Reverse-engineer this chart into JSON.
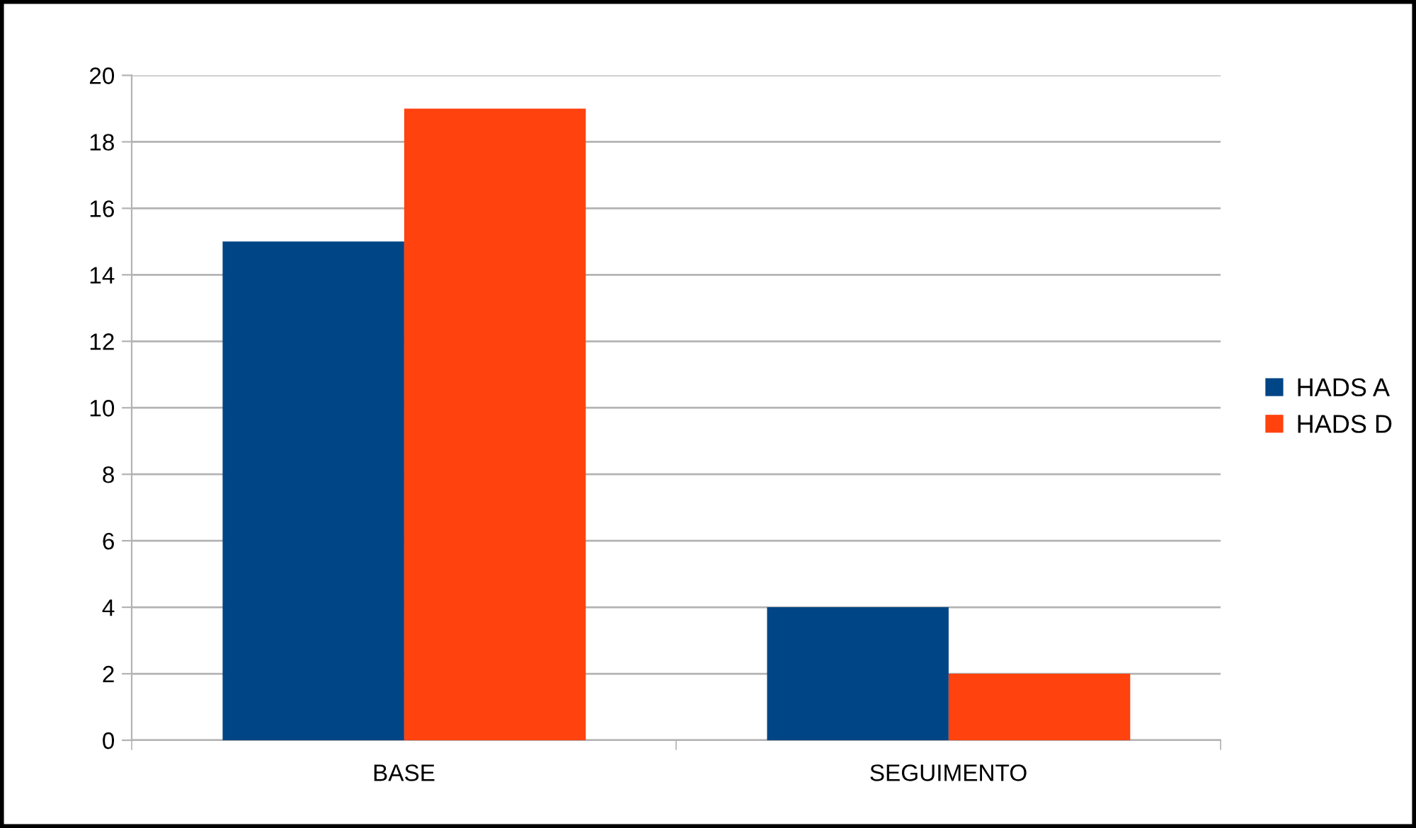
{
  "chart_data": {
    "type": "bar",
    "categories": [
      "BASE",
      "SEGUIMENTO"
    ],
    "series": [
      {
        "name": "HADS A",
        "color": "#004586",
        "values": [
          15,
          4
        ]
      },
      {
        "name": "HADS D",
        "color": "#ff420e",
        "values": [
          19,
          2
        ]
      }
    ],
    "ylim": [
      0,
      20
    ],
    "yticks": [
      0,
      2,
      4,
      6,
      8,
      10,
      12,
      14,
      16,
      18,
      20
    ],
    "grid": "y",
    "legend": "right"
  }
}
